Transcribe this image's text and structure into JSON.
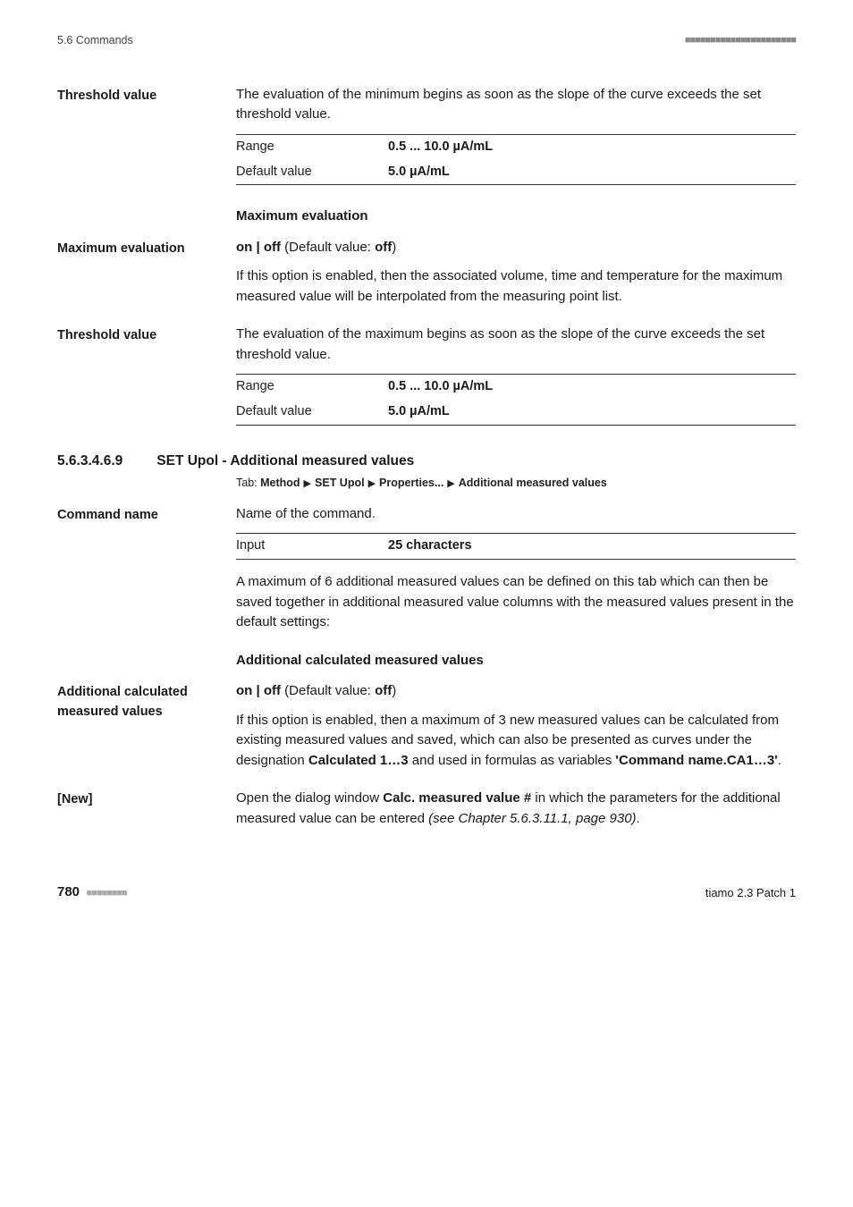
{
  "runhead": {
    "left": "5.6 Commands",
    "right_dots": "■■■■■■■■■■■■■■■■■■■■■■"
  },
  "threshold1": {
    "title": "Threshold value",
    "desc": "The evaluation of the minimum begins as soon as the slope of the curve exceeds the set threshold value.",
    "range_label": "Range",
    "range_value": "0.5 ... 10.0 µA/mL",
    "default_label": "Default value",
    "default_value": "5.0 µA/mL"
  },
  "maxeval_head": "Maximum evaluation",
  "maxeval": {
    "title": "Maximum evaluation",
    "toggle_pre": "on | off",
    "toggle_mid": " (Default value: ",
    "toggle_val": "off",
    "toggle_post": ")",
    "desc": "If this option is enabled, then the associated volume, time and temperature for the maximum measured value will be interpolated from the measuring point list."
  },
  "threshold2": {
    "title": "Threshold value",
    "desc": "The evaluation of the maximum begins as soon as the slope of the curve exceeds the set threshold value.",
    "range_label": "Range",
    "range_value": "0.5 ... 10.0 µA/mL",
    "default_label": "Default value",
    "default_value": "5.0 µA/mL"
  },
  "numsec": {
    "num": "5.6.3.4.6.9",
    "title": "SET Upol - Additional measured values"
  },
  "tabline": {
    "pre": "Tab: ",
    "p1": "Method",
    "p2": "SET Upol",
    "p3": "Properties...",
    "p4": "Additional measured values"
  },
  "cmdname": {
    "title": "Command name",
    "desc": "Name of the command.",
    "input_label": "Input",
    "input_value": "25 characters",
    "after": "A maximum of 6 additional measured values can be defined on this tab which can then be saved together in additional measured value columns with the measured values present in the default settings:"
  },
  "addcalc_head": "Additional calculated measured values",
  "addcalc": {
    "title": "Additional calculated measured values",
    "toggle_pre": "on | off",
    "toggle_mid": " (Default value: ",
    "toggle_val": "off",
    "toggle_post": ")",
    "desc_a": "If this option is enabled, then a maximum of 3 new measured values can be calculated from existing measured values and saved, which can also be presented as curves under the designation ",
    "desc_b": "Calculated 1…3",
    "desc_c": " and used in formulas as variables ",
    "desc_d": "'Command name.CA1…3'",
    "desc_e": "."
  },
  "newbtn": {
    "title": "[New]",
    "desc_a": "Open the dialog window ",
    "desc_b": "Calc. measured value #",
    "desc_c": " in which the parameters for the additional measured value can be entered ",
    "desc_d": "(see Chapter 5.6.3.11.1, page 930)",
    "desc_e": "."
  },
  "foot": {
    "page": "780",
    "dots": "■■■■■■■■",
    "right": "tiamo 2.3 Patch 1"
  }
}
